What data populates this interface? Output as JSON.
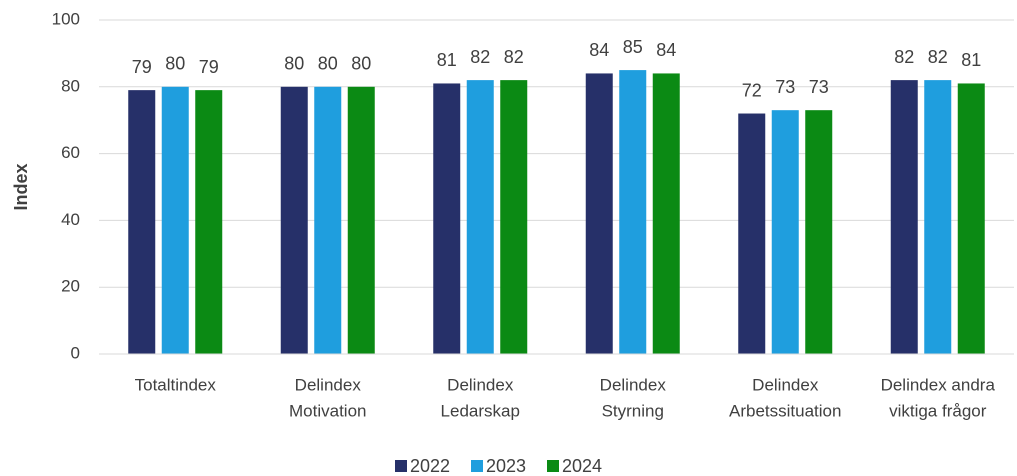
{
  "chart_data": {
    "type": "bar",
    "y_label": "Index",
    "categories": [
      [
        "Totaltindex"
      ],
      [
        "Delindex",
        "Motivation"
      ],
      [
        "Delindex",
        "Ledarskap"
      ],
      [
        "Delindex",
        "Styrning"
      ],
      [
        "Delindex",
        "Arbetssituation"
      ],
      [
        "Delindex andra",
        "viktiga frågor"
      ]
    ],
    "series": [
      {
        "name": "2022",
        "color": "#263069",
        "values": [
          79,
          80,
          81,
          84,
          72,
          82
        ]
      },
      {
        "name": "2023",
        "color": "#1f9ede",
        "values": [
          80,
          80,
          82,
          85,
          73,
          82
        ]
      },
      {
        "name": "2024",
        "color": "#0b8a14",
        "values": [
          79,
          80,
          82,
          84,
          73,
          81
        ]
      }
    ],
    "ylim": [
      0,
      100
    ],
    "yticks": [
      0,
      20,
      40,
      60,
      80,
      100
    ],
    "grid": true,
    "legend": "bottom"
  }
}
